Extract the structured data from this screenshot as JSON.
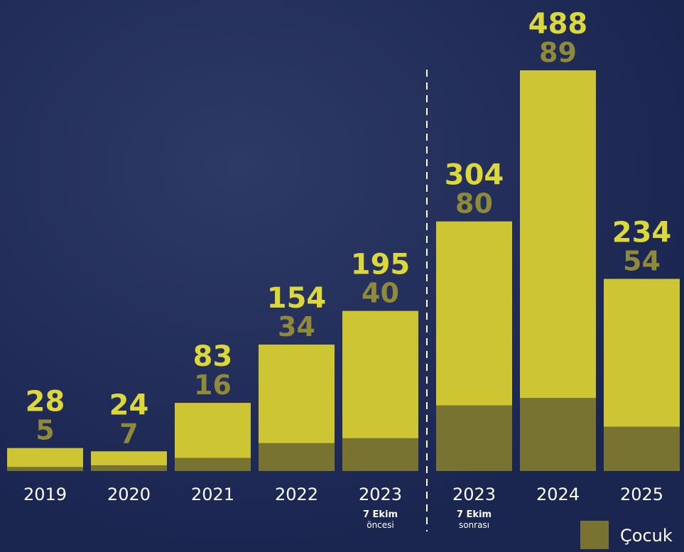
{
  "chart_data": {
    "type": "bar",
    "categories": [
      "2019",
      "2020",
      "2021",
      "2022",
      "2023",
      "2023",
      "2024",
      "2025"
    ],
    "category_sublabels": [
      null,
      null,
      null,
      null,
      [
        "7 Ekim",
        "öncesi"
      ],
      [
        "7 Ekim",
        "sonrası"
      ],
      null,
      null
    ],
    "series": [
      {
        "color": "#cdc533",
        "label_color": "#dcd83c",
        "values": [
          28,
          24,
          83,
          154,
          195,
          304,
          488,
          234
        ]
      },
      {
        "name": "Çocuk",
        "color": "#787330",
        "label_color": "#8f8a3a",
        "values": [
          5,
          7,
          16,
          34,
          40,
          80,
          89,
          54
        ]
      }
    ],
    "legend": "bottom-right"
  }
}
